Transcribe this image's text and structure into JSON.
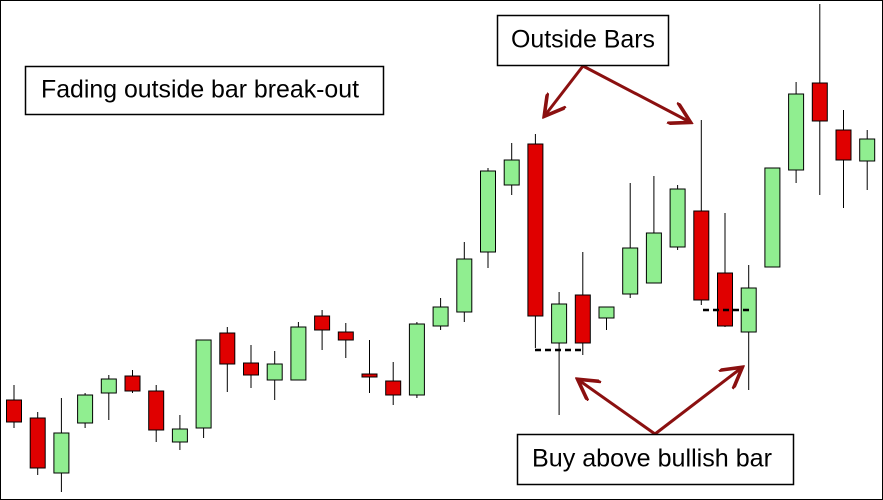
{
  "chart_data": {
    "type": "candlestick",
    "annotations": [
      "Fading outside bar break-out",
      "Outside Bars",
      "Buy above bullish bar"
    ],
    "up_color": "#90ee90",
    "down_color": "#e00000",
    "ylim": [
      0,
      500
    ],
    "open": [
      100,
      82,
      27,
      77,
      107,
      124,
      109,
      58,
      72,
      167,
      137,
      120,
      120,
      184,
      168,
      126,
      119,
      105,
      174,
      188,
      248,
      315,
      356,
      157,
      205,
      182,
      206,
      217,
      253,
      289,
      227,
      168,
      233,
      330,
      417,
      370,
      339
    ],
    "high": [
      115,
      88,
      102,
      107,
      125,
      130,
      115,
      85,
      160,
      173,
      155,
      149,
      178,
      190,
      177,
      160,
      138,
      178,
      202,
      258,
      332,
      357,
      366,
      208,
      248,
      193,
      317,
      324,
      315,
      380,
      287,
      235,
      332,
      418,
      496,
      390,
      370
    ],
    "low": [
      72,
      25,
      8,
      72,
      80,
      107,
      58,
      50,
      62,
      108,
      112,
      100,
      120,
      150,
      142,
      107,
      95,
      102,
      170,
      178,
      232,
      305,
      152,
      85,
      145,
      170,
      202,
      217,
      250,
      195,
      173,
      110,
      233,
      317,
      305,
      292,
      310
    ],
    "close": [
      78,
      32,
      67,
      105,
      121,
      109,
      70,
      71,
      160,
      136,
      125,
      136,
      173,
      170,
      160,
      123,
      105,
      176,
      193,
      241,
      329,
      340,
      184,
      196,
      157,
      193,
      252,
      267,
      311,
      200,
      174,
      212,
      332,
      406,
      379,
      340,
      361
    ]
  }
}
